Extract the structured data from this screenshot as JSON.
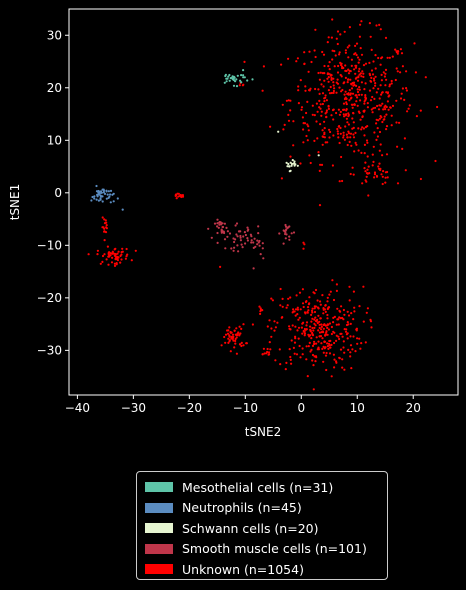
{
  "chart_data": {
    "type": "scatter",
    "xlabel": "tSNE2",
    "ylabel": "tSNE1",
    "xlim": [
      -41.5,
      28
    ],
    "ylim": [
      -38.5,
      35
    ],
    "xticks": [
      -40,
      -30,
      -20,
      -10,
      0,
      10,
      20
    ],
    "yticks": [
      -30,
      -20,
      -10,
      0,
      10,
      20,
      30
    ],
    "xtick_labels": [
      "−40",
      "−30",
      "−20",
      "−10",
      "0",
      "10",
      "20"
    ],
    "ytick_labels": [
      "−30",
      "−20",
      "−10",
      "0",
      "10",
      "20",
      "30"
    ],
    "grid": false,
    "legend_position": "bottom",
    "series": [
      {
        "name": "Mesothelial cells (n=31)",
        "color": "#5ec4a8",
        "clusters": [
          {
            "center": [
              -12,
              21.8
            ],
            "sx": 1.4,
            "sy": 0.6,
            "n": 31
          }
        ]
      },
      {
        "name": "Neutrophils (n=45)",
        "color": "#5b8cc0",
        "clusters": [
          {
            "center": [
              -35.5,
              -0.5
            ],
            "sx": 1.0,
            "sy": 0.8,
            "n": 44
          },
          {
            "center": [
              -32,
              -3.2
            ],
            "sx": 0.1,
            "sy": 0.1,
            "n": 1
          }
        ]
      },
      {
        "name": "Schwann cells (n=20)",
        "color": "#e6f5d0",
        "clusters": [
          {
            "center": [
              -2,
              5.3
            ],
            "sx": 0.5,
            "sy": 0.5,
            "n": 17
          },
          {
            "center": [
              -4,
              11.7
            ],
            "sx": 0.1,
            "sy": 0.1,
            "n": 1
          },
          {
            "center": [
              3,
              7
            ],
            "sx": 0.1,
            "sy": 0.1,
            "n": 1
          },
          {
            "center": [
              -1.5,
              6.3
            ],
            "sx": 0.1,
            "sy": 0.1,
            "n": 1
          }
        ]
      },
      {
        "name": "Smooth muscle cells (n=101)",
        "color": "#c0364a",
        "clusters": [
          {
            "center": [
              -14,
              -7
            ],
            "sx": 0.7,
            "sy": 0.9,
            "n": 30
          },
          {
            "center": [
              -11,
              -8.5
            ],
            "sx": 1.2,
            "sy": 1.2,
            "n": 35
          },
          {
            "center": [
              -7.5,
              -10
            ],
            "sx": 0.8,
            "sy": 1.5,
            "n": 16
          },
          {
            "center": [
              -2.5,
              -7.5
            ],
            "sx": 0.6,
            "sy": 1.0,
            "n": 20
          }
        ]
      },
      {
        "name": "Unknown (n=1054)",
        "color": "#ff0000",
        "clusters": [
          {
            "center": [
              9,
              18
            ],
            "sx": 5.5,
            "sy": 6.0,
            "n": 520
          },
          {
            "center": [
              13,
              3.5
            ],
            "sx": 1.8,
            "sy": 1.0,
            "n": 35
          },
          {
            "center": [
              3,
              -26
            ],
            "sx": 4.0,
            "sy": 4.0,
            "n": 330
          },
          {
            "center": [
              -12,
              -27.5
            ],
            "sx": 1.0,
            "sy": 1.2,
            "n": 55
          },
          {
            "center": [
              -33.5,
              -12
            ],
            "sx": 1.5,
            "sy": 0.8,
            "n": 60
          },
          {
            "center": [
              -35,
              -6.5
            ],
            "sx": 0.3,
            "sy": 0.8,
            "n": 15
          },
          {
            "center": [
              -22,
              -0.5
            ],
            "sx": 0.5,
            "sy": 0.2,
            "n": 15
          },
          {
            "center": [
              -6,
              -30.5
            ],
            "sx": 0.4,
            "sy": 0.5,
            "n": 10
          },
          {
            "center": [
              -7,
              -22.5
            ],
            "sx": 0.4,
            "sy": 0.4,
            "n": 6
          },
          {
            "center": [
              -10.5,
              20.5
            ],
            "sx": 0.3,
            "sy": 0.3,
            "n": 4
          },
          {
            "center": [
              0.5,
              -10
            ],
            "sx": 0.2,
            "sy": 0.4,
            "n": 3
          },
          {
            "center": [
              -14.5,
              -14
            ],
            "sx": 0.1,
            "sy": 0.1,
            "n": 1
          }
        ]
      }
    ]
  }
}
